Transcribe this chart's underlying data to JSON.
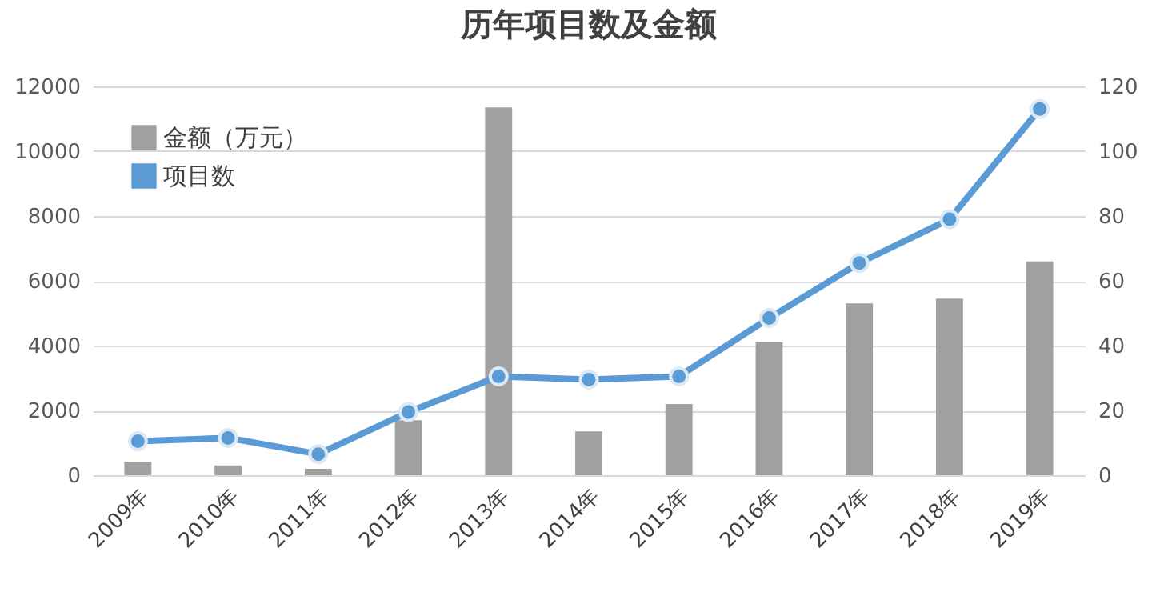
{
  "chart_data": {
    "type": "bar",
    "title": "历年项目数及金额",
    "categories": [
      "2009年",
      "2010年",
      "2011年",
      "2012年",
      "2013年",
      "2014年",
      "2015年",
      "2016年",
      "2017年",
      "2018年",
      "2019年"
    ],
    "series": [
      {
        "name": "金额（万元）",
        "color": "#a0a0a0",
        "values": [
          420,
          300,
          200,
          1700,
          11350,
          1350,
          2200,
          4100,
          5300,
          5450,
          6600
        ]
      },
      {
        "name": "项目数",
        "type": "line",
        "axis": "y2",
        "color": "#5b9bd5",
        "values": [
          10.5,
          11.5,
          6.5,
          19.5,
          30.5,
          29.5,
          30.5,
          48.5,
          65.5,
          79,
          113
        ]
      }
    ],
    "ylim": [
      0,
      12000
    ],
    "yticks": [
      0,
      2000,
      4000,
      6000,
      8000,
      10000,
      12000
    ],
    "y2lim": [
      0,
      120
    ],
    "y2ticks": [
      0,
      20,
      40,
      60,
      80,
      100,
      120
    ],
    "grid": "y",
    "legend": "top left",
    "marker": "circle",
    "line_style": "solid"
  }
}
